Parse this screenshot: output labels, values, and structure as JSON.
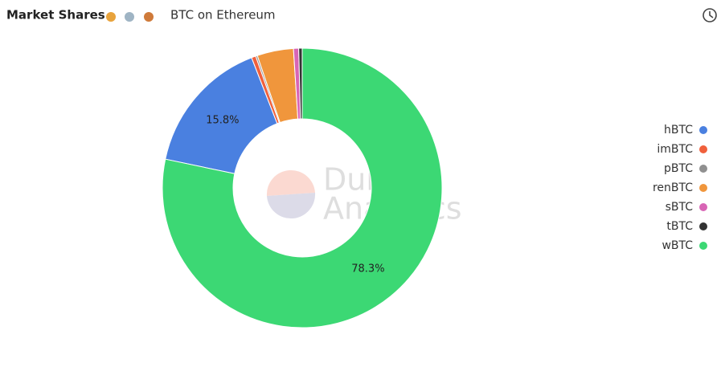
{
  "header": {
    "title": "Market Shares",
    "subtitle": "BTC on Ethereum"
  },
  "watermark": [
    "Dune",
    "Analytics"
  ],
  "chart_data": {
    "type": "donut",
    "categories": [
      "hBTC",
      "imBTC",
      "pBTC",
      "renBTC",
      "sBTC",
      "tBTC",
      "wBTC"
    ],
    "values": [
      15.8,
      0.5,
      0.2,
      4.2,
      0.6,
      0.4,
      78.3
    ],
    "value_labels": [
      "15.8%",
      null,
      null,
      null,
      null,
      null,
      "78.3%"
    ],
    "colors": [
      "#4a80e0",
      "#f0603c",
      "#909090",
      "#f0963c",
      "#d865b5",
      "#333333",
      "#3cd874"
    ],
    "legend": "right"
  }
}
